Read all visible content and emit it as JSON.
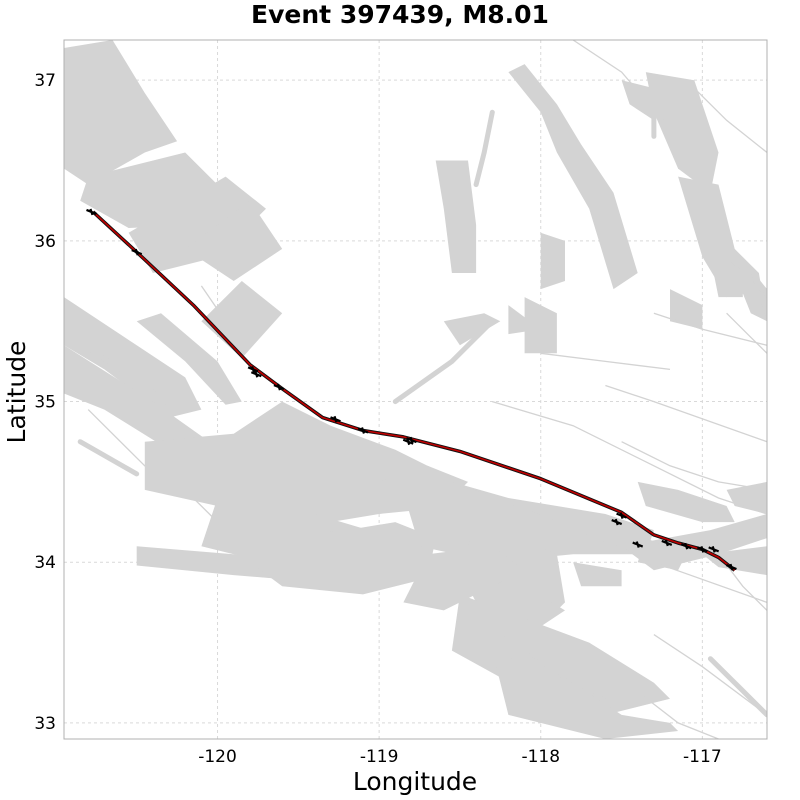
{
  "chart_data": {
    "type": "map",
    "title": "Event 397439, M8.01",
    "xlabel": "Longitude",
    "ylabel": "Latitude",
    "xlim": [
      -120.95,
      -116.6
    ],
    "ylim": [
      32.9,
      37.25
    ],
    "x_ticks": [
      -120,
      -119,
      -118,
      -117
    ],
    "y_ticks": [
      33,
      34,
      35,
      36,
      37
    ],
    "x_tick_labels": [
      "-120",
      "-119",
      "-118",
      "-117"
    ],
    "y_tick_labels": [
      "33",
      "34",
      "35",
      "36",
      "37"
    ],
    "grid": true,
    "colors": {
      "faults": "#d3d3d3",
      "rupture": "#c00000",
      "slip_marks": "#000000",
      "grid": "#d9d9d9"
    },
    "rupture_trace": [
      [
        -120.77,
        36.18
      ],
      [
        -120.5,
        35.93
      ],
      [
        -120.15,
        35.6
      ],
      [
        -119.8,
        35.23
      ],
      [
        -119.6,
        35.08
      ],
      [
        -119.35,
        34.9
      ],
      [
        -119.1,
        34.82
      ],
      [
        -118.85,
        34.78
      ],
      [
        -118.5,
        34.69
      ],
      [
        -118.0,
        34.52
      ],
      [
        -117.5,
        34.31
      ],
      [
        -117.3,
        34.17
      ],
      [
        -117.15,
        34.12
      ],
      [
        -117.0,
        34.08
      ],
      [
        -116.9,
        34.03
      ],
      [
        -116.8,
        33.95
      ]
    ],
    "slip_vectors": [
      [
        -120.78,
        36.18
      ],
      [
        -120.5,
        35.93
      ],
      [
        -119.78,
        35.2
      ],
      [
        -119.76,
        35.17
      ],
      [
        -119.62,
        35.09
      ],
      [
        -119.27,
        34.89
      ],
      [
        -119.1,
        34.82
      ],
      [
        -118.82,
        34.75
      ],
      [
        -118.8,
        34.76
      ],
      [
        -117.5,
        34.29
      ],
      [
        -117.53,
        34.25
      ],
      [
        -117.4,
        34.11
      ],
      [
        -117.22,
        34.12
      ],
      [
        -117.1,
        34.1
      ],
      [
        -117.0,
        34.08
      ],
      [
        -116.93,
        34.08
      ],
      [
        -116.82,
        33.97
      ]
    ],
    "fault_patches": [
      [
        [
          -120.95,
          37.2
        ],
        [
          -120.65,
          37.25
        ],
        [
          -120.45,
          36.92
        ],
        [
          -120.25,
          36.62
        ],
        [
          -120.45,
          36.55
        ],
        [
          -120.8,
          36.35
        ],
        [
          -120.95,
          36.45
        ]
      ],
      [
        [
          -120.8,
          36.4
        ],
        [
          -120.2,
          36.55
        ],
        [
          -119.95,
          36.3
        ],
        [
          -120.1,
          36.1
        ],
        [
          -120.55,
          36.08
        ],
        [
          -120.85,
          36.25
        ]
      ],
      [
        [
          -120.55,
          36.05
        ],
        [
          -119.95,
          36.4
        ],
        [
          -119.7,
          36.2
        ],
        [
          -120.0,
          35.9
        ],
        [
          -120.4,
          35.8
        ]
      ],
      [
        [
          -120.2,
          35.95
        ],
        [
          -119.8,
          36.25
        ],
        [
          -119.6,
          35.95
        ],
        [
          -119.9,
          35.75
        ]
      ],
      [
        [
          -120.1,
          35.5
        ],
        [
          -119.85,
          35.75
        ],
        [
          -119.6,
          35.55
        ],
        [
          -119.85,
          35.27
        ]
      ],
      [
        [
          -120.95,
          35.65
        ],
        [
          -120.5,
          35.35
        ],
        [
          -120.2,
          35.15
        ],
        [
          -120.1,
          34.95
        ],
        [
          -120.3,
          34.9
        ],
        [
          -120.7,
          35.2
        ],
        [
          -120.95,
          35.35
        ]
      ],
      [
        [
          -120.95,
          35.35
        ],
        [
          -120.4,
          35.0
        ],
        [
          -120.05,
          34.75
        ],
        [
          -120.3,
          34.7
        ],
        [
          -120.7,
          34.95
        ],
        [
          -120.95,
          35.05
        ]
      ],
      [
        [
          -120.5,
          35.5
        ],
        [
          -120.35,
          35.55
        ],
        [
          -120.0,
          35.25
        ],
        [
          -119.85,
          35.0
        ],
        [
          -119.95,
          34.98
        ],
        [
          -120.2,
          35.25
        ]
      ],
      [
        [
          -120.45,
          34.75
        ],
        [
          -119.9,
          34.8
        ],
        [
          -119.6,
          35.0
        ],
        [
          -119.3,
          34.85
        ],
        [
          -118.9,
          34.7
        ],
        [
          -118.6,
          34.55
        ],
        [
          -118.5,
          34.35
        ],
        [
          -119.0,
          34.3
        ],
        [
          -119.6,
          34.2
        ],
        [
          -120.0,
          34.35
        ],
        [
          -120.45,
          34.45
        ]
      ],
      [
        [
          -120.0,
          34.4
        ],
        [
          -119.4,
          34.3
        ],
        [
          -118.9,
          34.15
        ],
        [
          -118.7,
          33.95
        ],
        [
          -119.1,
          33.88
        ],
        [
          -119.7,
          34.0
        ],
        [
          -120.1,
          34.1
        ]
      ],
      [
        [
          -120.5,
          34.1
        ],
        [
          -119.9,
          34.05
        ],
        [
          -119.3,
          33.95
        ],
        [
          -119.3,
          33.87
        ],
        [
          -119.9,
          33.92
        ],
        [
          -120.5,
          33.98
        ]
      ],
      [
        [
          -119.8,
          34.15
        ],
        [
          -119.2,
          34.2
        ],
        [
          -118.9,
          34.25
        ],
        [
          -118.65,
          34.15
        ],
        [
          -118.7,
          33.9
        ],
        [
          -119.1,
          33.8
        ],
        [
          -119.6,
          33.85
        ],
        [
          -119.8,
          34.0
        ]
      ],
      [
        [
          -118.9,
          34.6
        ],
        [
          -118.2,
          34.4
        ],
        [
          -117.6,
          34.3
        ],
        [
          -117.3,
          34.2
        ],
        [
          -117.35,
          34.05
        ],
        [
          -117.8,
          34.05
        ],
        [
          -118.3,
          34.0
        ],
        [
          -118.75,
          34.1
        ]
      ],
      [
        [
          -118.4,
          34.25
        ],
        [
          -117.9,
          34.05
        ],
        [
          -117.85,
          33.75
        ],
        [
          -118.05,
          33.55
        ],
        [
          -118.35,
          33.65
        ],
        [
          -118.5,
          33.95
        ]
      ],
      [
        [
          -118.7,
          34.05
        ],
        [
          -118.3,
          34.1
        ],
        [
          -118.1,
          33.95
        ],
        [
          -118.6,
          33.7
        ],
        [
          -118.85,
          33.75
        ]
      ],
      [
        [
          -119.0,
          34.5
        ],
        [
          -118.7,
          34.6
        ],
        [
          -118.45,
          34.5
        ],
        [
          -118.6,
          34.35
        ],
        [
          -118.9,
          34.35
        ]
      ],
      [
        [
          -118.5,
          33.8
        ],
        [
          -117.7,
          33.5
        ],
        [
          -117.3,
          33.25
        ],
        [
          -117.2,
          33.15
        ],
        [
          -117.6,
          33.05
        ],
        [
          -118.1,
          33.2
        ],
        [
          -118.55,
          33.45
        ]
      ],
      [
        [
          -118.3,
          33.45
        ],
        [
          -117.8,
          33.25
        ],
        [
          -117.5,
          33.05
        ],
        [
          -117.2,
          33.0
        ],
        [
          -117.15,
          32.95
        ],
        [
          -117.6,
          32.9
        ],
        [
          -118.2,
          33.05
        ]
      ],
      [
        [
          -117.5,
          34.1
        ],
        [
          -116.95,
          34.2
        ],
        [
          -116.6,
          34.3
        ],
        [
          -116.6,
          34.15
        ],
        [
          -116.9,
          34.05
        ],
        [
          -117.3,
          33.95
        ]
      ],
      [
        [
          -117.4,
          34.5
        ],
        [
          -117.15,
          34.45
        ],
        [
          -116.85,
          34.35
        ],
        [
          -116.8,
          34.25
        ],
        [
          -117.0,
          34.25
        ],
        [
          -117.35,
          34.35
        ]
      ],
      [
        [
          -117.0,
          34.05
        ],
        [
          -116.6,
          34.1
        ],
        [
          -116.6,
          33.92
        ],
        [
          -116.9,
          33.97
        ]
      ],
      [
        [
          -118.1,
          37.1
        ],
        [
          -117.9,
          36.85
        ],
        [
          -117.75,
          36.6
        ],
        [
          -117.55,
          36.3
        ],
        [
          -117.4,
          35.8
        ],
        [
          -117.55,
          35.7
        ],
        [
          -117.7,
          36.2
        ],
        [
          -117.9,
          36.55
        ],
        [
          -118.0,
          36.8
        ],
        [
          -118.2,
          37.05
        ]
      ],
      [
        [
          -117.35,
          37.05
        ],
        [
          -117.05,
          37.0
        ],
        [
          -116.9,
          36.55
        ],
        [
          -116.95,
          36.3
        ],
        [
          -117.15,
          36.45
        ],
        [
          -117.3,
          36.8
        ]
      ],
      [
        [
          -117.5,
          37.0
        ],
        [
          -117.3,
          36.95
        ],
        [
          -117.3,
          36.75
        ],
        [
          -117.45,
          36.85
        ]
      ],
      [
        [
          -117.15,
          36.4
        ],
        [
          -116.9,
          36.35
        ],
        [
          -116.8,
          35.95
        ],
        [
          -116.6,
          35.7
        ],
        [
          -116.85,
          35.65
        ],
        [
          -117.0,
          35.9
        ]
      ],
      [
        [
          -116.95,
          35.9
        ],
        [
          -116.75,
          35.85
        ],
        [
          -116.75,
          35.65
        ],
        [
          -116.9,
          35.65
        ]
      ],
      [
        [
          -116.85,
          36.0
        ],
        [
          -116.65,
          35.8
        ],
        [
          -116.6,
          35.5
        ],
        [
          -116.7,
          35.55
        ],
        [
          -116.8,
          35.8
        ]
      ],
      [
        [
          -116.7,
          35.8
        ],
        [
          -116.6,
          35.7
        ],
        [
          -116.6,
          35.5
        ]
      ],
      [
        [
          -118.65,
          36.5
        ],
        [
          -118.45,
          36.5
        ],
        [
          -118.4,
          36.1
        ],
        [
          -118.4,
          35.8
        ],
        [
          -118.55,
          35.8
        ],
        [
          -118.6,
          36.2
        ]
      ],
      [
        [
          -118.0,
          36.05
        ],
        [
          -117.85,
          36.0
        ],
        [
          -117.85,
          35.75
        ],
        [
          -118.0,
          35.7
        ]
      ],
      [
        [
          -118.1,
          35.65
        ],
        [
          -117.9,
          35.55
        ],
        [
          -117.9,
          35.3
        ],
        [
          -118.1,
          35.3
        ]
      ],
      [
        [
          -118.6,
          35.5
        ],
        [
          -118.35,
          35.55
        ],
        [
          -118.25,
          35.5
        ],
        [
          -118.5,
          35.35
        ]
      ],
      [
        [
          -118.2,
          35.6
        ],
        [
          -118.0,
          35.45
        ],
        [
          -118.2,
          35.42
        ]
      ],
      [
        [
          -117.2,
          35.7
        ],
        [
          -117.0,
          35.6
        ],
        [
          -117.0,
          35.45
        ],
        [
          -117.2,
          35.5
        ]
      ],
      [
        [
          -116.85,
          34.45
        ],
        [
          -116.6,
          34.5
        ],
        [
          -116.6,
          34.3
        ],
        [
          -116.8,
          34.35
        ]
      ],
      [
        [
          -117.35,
          34.15
        ],
        [
          -117.1,
          34.05
        ],
        [
          -117.15,
          33.95
        ],
        [
          -117.4,
          34.0
        ]
      ],
      [
        [
          -117.8,
          34.0
        ],
        [
          -117.5,
          33.95
        ],
        [
          -117.5,
          33.85
        ],
        [
          -117.75,
          33.85
        ]
      ],
      [
        [
          -118.1,
          33.85
        ],
        [
          -117.85,
          33.7
        ],
        [
          -118.0,
          33.6
        ],
        [
          -118.2,
          33.75
        ]
      ]
    ],
    "fault_traces": [
      [
        [
          -120.3,
          34.55
        ],
        [
          -120.05,
          34.3
        ],
        [
          -119.8,
          34.05
        ]
      ],
      [
        [
          -118.7,
          34.55
        ],
        [
          -118.0,
          34.3
        ],
        [
          -117.3,
          34.0
        ],
        [
          -116.6,
          33.75
        ]
      ],
      [
        [
          -117.8,
          37.25
        ],
        [
          -117.5,
          37.05
        ],
        [
          -117.2,
          36.7
        ]
      ],
      [
        [
          -117.1,
          37.0
        ],
        [
          -116.85,
          36.75
        ],
        [
          -116.6,
          36.55
        ]
      ],
      [
        [
          -117.0,
          36.1
        ],
        [
          -116.85,
          35.9
        ],
        [
          -116.6,
          35.65
        ]
      ],
      [
        [
          -116.85,
          35.55
        ],
        [
          -116.7,
          35.4
        ],
        [
          -116.6,
          35.3
        ]
      ],
      [
        [
          -118.3,
          35.0
        ],
        [
          -117.8,
          34.85
        ],
        [
          -117.3,
          34.6
        ],
        [
          -116.9,
          34.4
        ],
        [
          -116.6,
          34.3
        ]
      ],
      [
        [
          -117.5,
          34.75
        ],
        [
          -117.2,
          34.6
        ],
        [
          -116.9,
          34.5
        ],
        [
          -116.6,
          34.45
        ]
      ],
      [
        [
          -117.3,
          35.55
        ],
        [
          -117.0,
          35.45
        ],
        [
          -116.6,
          35.35
        ]
      ],
      [
        [
          -117.6,
          35.1
        ],
        [
          -117.3,
          35.0
        ],
        [
          -116.6,
          34.75
        ]
      ],
      [
        [
          -117.3,
          33.55
        ],
        [
          -117.0,
          33.35
        ],
        [
          -116.6,
          33.05
        ]
      ],
      [
        [
          -117.6,
          33.35
        ],
        [
          -117.15,
          33.0
        ],
        [
          -116.9,
          32.9
        ]
      ],
      [
        [
          -116.9,
          34.05
        ],
        [
          -116.75,
          33.85
        ],
        [
          -116.6,
          33.7
        ]
      ],
      [
        [
          -118.0,
          35.3
        ],
        [
          -117.6,
          35.25
        ],
        [
          -117.2,
          35.2
        ]
      ],
      [
        [
          -120.1,
          35.72
        ],
        [
          -119.95,
          35.5
        ],
        [
          -119.85,
          35.3
        ]
      ],
      [
        [
          -120.8,
          34.95
        ],
        [
          -120.5,
          34.65
        ],
        [
          -120.3,
          34.45
        ]
      ],
      [
        [
          -118.3,
          33.6
        ],
        [
          -117.9,
          33.3
        ],
        [
          -117.6,
          33.15
        ]
      ]
    ],
    "fault_traces_thick": [
      [
        [
          -118.9,
          35.0
        ],
        [
          -118.55,
          35.25
        ],
        [
          -118.3,
          35.5
        ]
      ],
      [
        [
          -120.9,
          35.4
        ],
        [
          -120.6,
          35.2
        ],
        [
          -120.25,
          34.95
        ]
      ],
      [
        [
          -120.85,
          34.75
        ],
        [
          -120.5,
          34.55
        ]
      ],
      [
        [
          -116.95,
          33.4
        ],
        [
          -116.75,
          33.2
        ],
        [
          -116.6,
          33.05
        ]
      ],
      [
        [
          -118.3,
          36.8
        ],
        [
          -118.35,
          36.55
        ],
        [
          -118.4,
          36.35
        ]
      ],
      [
        [
          -117.3,
          36.85
        ],
        [
          -117.3,
          36.65
        ]
      ]
    ]
  }
}
